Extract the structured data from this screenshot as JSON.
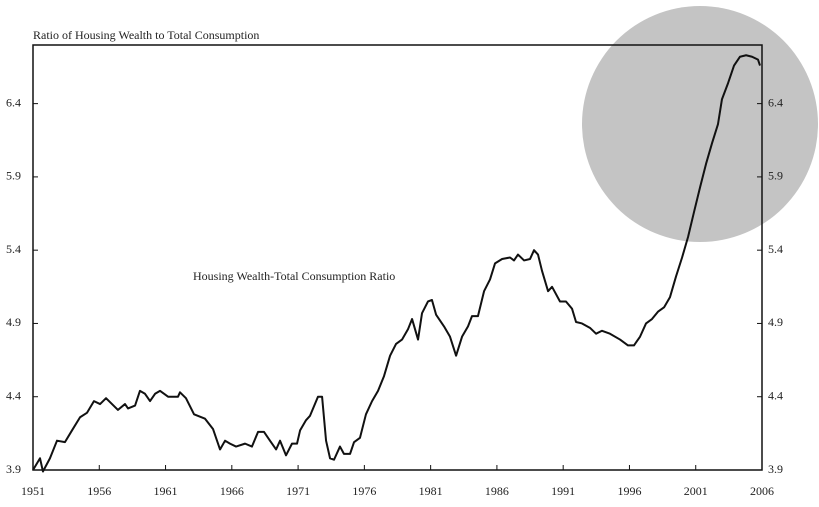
{
  "chart_data": {
    "type": "line",
    "title": "Ratio of Housing Wealth to Total Consumption",
    "annotation": "Housing Wealth-Total Consumption Ratio",
    "xlim": [
      1951,
      2006
    ],
    "xticks": [
      1951,
      1956,
      1961,
      1966,
      1971,
      1976,
      1981,
      1986,
      1991,
      1996,
      2001,
      2006
    ],
    "ylim": [
      3.9,
      6.8
    ],
    "yticks": [
      3.9,
      4.4,
      4.9,
      5.4,
      5.9,
      6.4
    ],
    "series": [
      {
        "name": "Housing Wealth-Total Consumption Ratio",
        "color": "#111111",
        "x": [
          1951.0,
          1951.53,
          1951.75,
          1952.28,
          1952.81,
          1953.41,
          1953.94,
          1954.55,
          1955.07,
          1955.6,
          1956.06,
          1956.51,
          1956.96,
          1957.41,
          1957.94,
          1958.17,
          1958.7,
          1959.07,
          1959.45,
          1959.83,
          1960.21,
          1960.58,
          1961.19,
          1961.94,
          1962.09,
          1962.54,
          1963.15,
          1963.98,
          1964.58,
          1965.11,
          1965.49,
          1965.86,
          1966.32,
          1967.0,
          1967.52,
          1967.98,
          1968.43,
          1968.88,
          1969.34,
          1969.64,
          1970.09,
          1970.54,
          1970.92,
          1971.15,
          1971.6,
          1971.9,
          1972.5,
          1972.81,
          1973.11,
          1973.41,
          1973.71,
          1974.16,
          1974.46,
          1974.92,
          1975.22,
          1975.67,
          1976.12,
          1976.58,
          1977.03,
          1977.48,
          1977.94,
          1978.39,
          1978.84,
          1979.29,
          1979.6,
          1980.05,
          1980.35,
          1980.8,
          1981.1,
          1981.41,
          1982.01,
          1982.46,
          1982.92,
          1983.37,
          1983.82,
          1984.12,
          1984.57,
          1985.03,
          1985.48,
          1985.86,
          1986.39,
          1986.99,
          1987.29,
          1987.59,
          1988.05,
          1988.5,
          1988.8,
          1989.1,
          1989.4,
          1989.86,
          1990.16,
          1990.76,
          1991.21,
          1991.67,
          1991.97,
          1992.42,
          1993.02,
          1993.48,
          1993.93,
          1994.53,
          1995.29,
          1995.89,
          1996.34,
          1996.8,
          1997.25,
          1997.7,
          1998.15,
          1998.61,
          1999.06,
          1999.51,
          1999.97,
          2000.42,
          2000.87,
          2001.33,
          2001.78,
          2002.23,
          2002.68,
          2002.98,
          2003.44,
          2003.89,
          2004.34,
          2004.8,
          2005.25,
          2005.7,
          2005.85
        ],
        "values": [
          3.9,
          3.98,
          3.89,
          3.98,
          4.1,
          4.09,
          4.17,
          4.26,
          4.29,
          4.37,
          4.35,
          4.39,
          4.35,
          4.31,
          4.35,
          4.32,
          4.34,
          4.44,
          4.42,
          4.37,
          4.42,
          4.44,
          4.4,
          4.4,
          4.43,
          4.39,
          4.28,
          4.25,
          4.18,
          4.04,
          4.1,
          4.08,
          4.06,
          4.08,
          4.06,
          4.16,
          4.16,
          4.1,
          4.04,
          4.1,
          4.0,
          4.08,
          4.08,
          4.17,
          4.24,
          4.27,
          4.4,
          4.4,
          4.1,
          3.98,
          3.97,
          4.06,
          4.01,
          4.01,
          4.09,
          4.12,
          4.28,
          4.37,
          4.44,
          4.54,
          4.68,
          4.76,
          4.79,
          4.86,
          4.93,
          4.79,
          4.97,
          5.05,
          5.06,
          4.96,
          4.88,
          4.81,
          4.68,
          4.81,
          4.88,
          4.95,
          4.95,
          5.12,
          5.2,
          5.31,
          5.34,
          5.35,
          5.33,
          5.37,
          5.33,
          5.34,
          5.4,
          5.37,
          5.26,
          5.12,
          5.15,
          5.05,
          5.05,
          5.0,
          4.91,
          4.9,
          4.87,
          4.83,
          4.85,
          4.83,
          4.79,
          4.75,
          4.75,
          4.81,
          4.9,
          4.93,
          4.98,
          5.01,
          5.08,
          5.22,
          5.35,
          5.49,
          5.66,
          5.83,
          5.99,
          6.13,
          6.26,
          6.43,
          6.54,
          6.66,
          6.72,
          6.73,
          6.72,
          6.7,
          6.66
        ]
      }
    ]
  }
}
